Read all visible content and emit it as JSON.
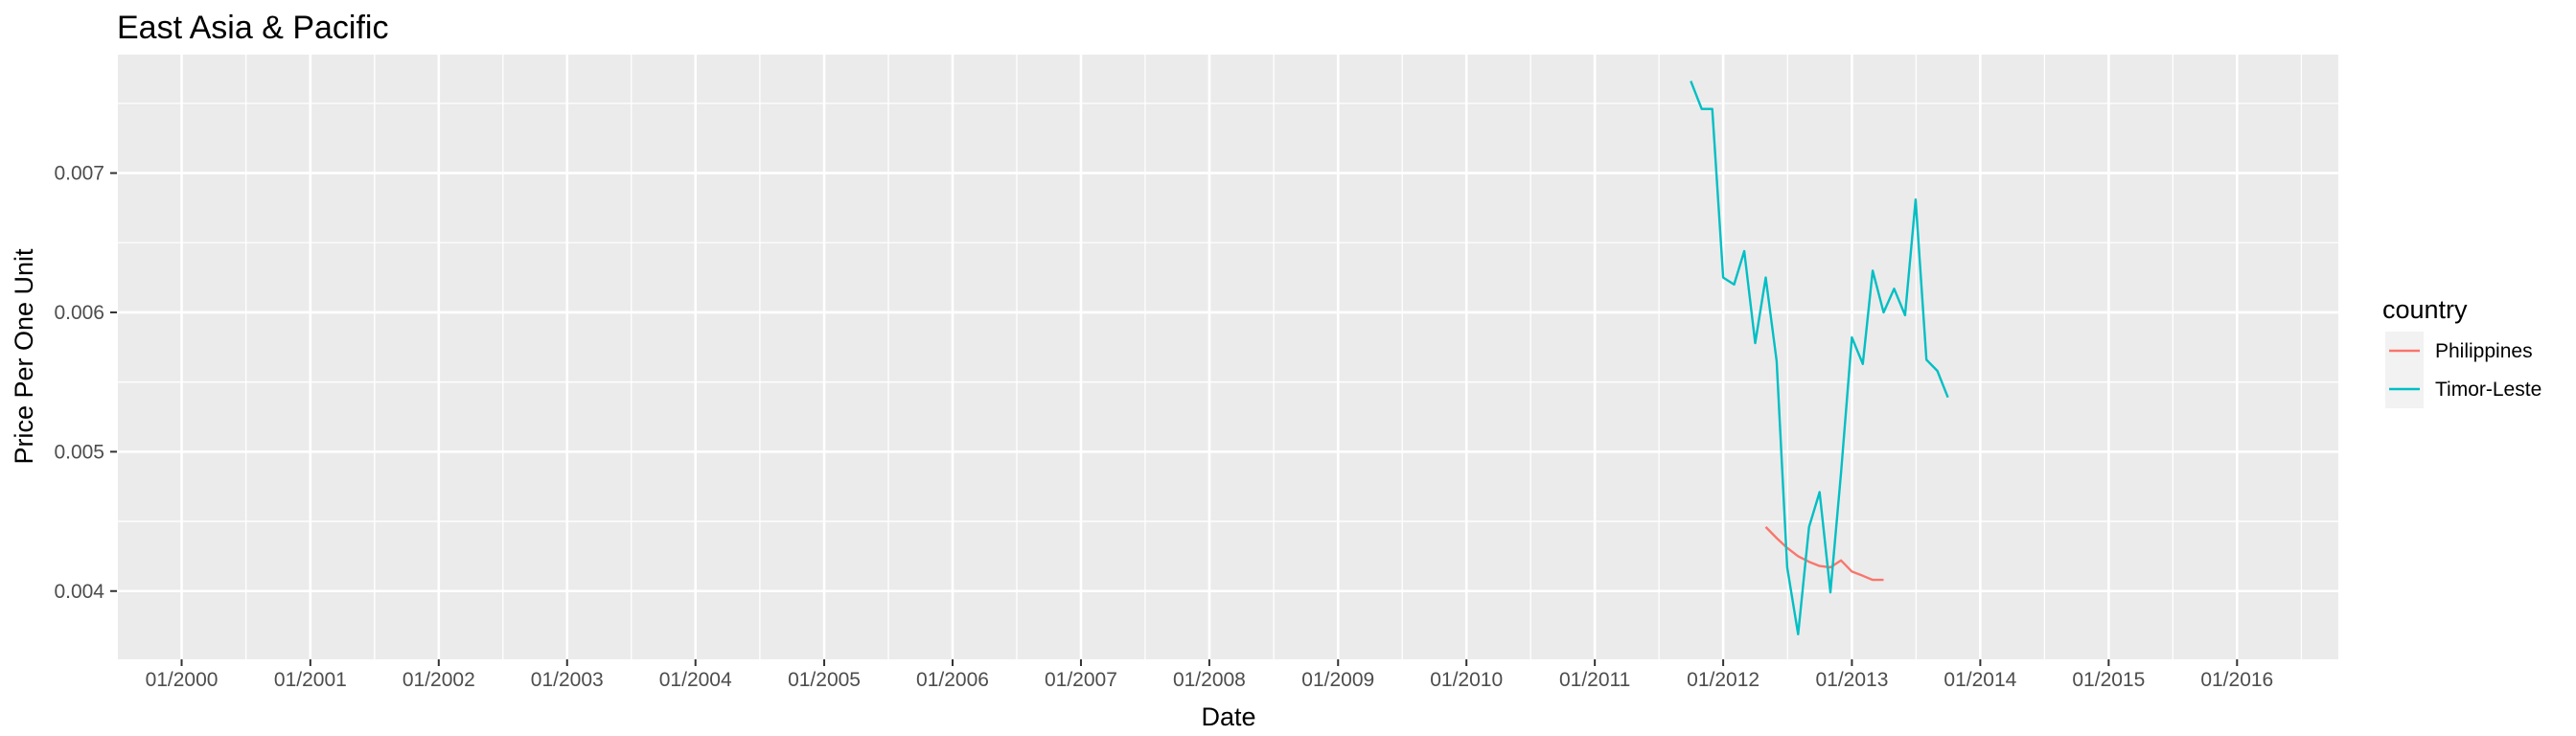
{
  "chart_data": {
    "type": "line",
    "title": "East Asia & Pacific",
    "xlabel": "Date",
    "ylabel": "Price Per One Unit",
    "xlim": [
      "1999-07-01",
      "2016-10-15"
    ],
    "ylim": [
      0.00351,
      0.00785
    ],
    "x_ticks": [
      "2000-01-01",
      "2001-01-01",
      "2002-01-01",
      "2003-01-01",
      "2004-01-01",
      "2005-01-01",
      "2006-01-01",
      "2007-01-01",
      "2008-01-01",
      "2009-01-01",
      "2010-01-01",
      "2011-01-01",
      "2012-01-01",
      "2013-01-01",
      "2014-01-01",
      "2015-01-01",
      "2016-01-01"
    ],
    "x_tick_labels": [
      "01/2000",
      "01/2001",
      "01/2002",
      "01/2003",
      "01/2004",
      "01/2005",
      "01/2006",
      "01/2007",
      "01/2008",
      "01/2009",
      "01/2010",
      "01/2011",
      "01/2012",
      "01/2013",
      "01/2014",
      "01/2015",
      "01/2016"
    ],
    "y_ticks": [
      0.004,
      0.005,
      0.006,
      0.007
    ],
    "y_tick_labels": [
      "0.004",
      "0.005",
      "0.006",
      "0.007"
    ],
    "grid": true,
    "legend": {
      "title": "country",
      "position": "right"
    },
    "series": [
      {
        "name": "Philippines",
        "color": "#F8766D",
        "x": [
          "2012-05-01",
          "2012-06-01",
          "2012-07-01",
          "2012-08-01",
          "2012-09-01",
          "2012-10-01",
          "2012-11-01",
          "2012-12-01",
          "2013-01-01",
          "2013-02-01",
          "2013-03-01",
          "2013-04-01"
        ],
        "y": [
          0.00446,
          0.00438,
          0.00431,
          0.00425,
          0.00421,
          0.00418,
          0.00417,
          0.00422,
          0.00414,
          0.00411,
          0.00408,
          0.00408
        ]
      },
      {
        "name": "Timor-Leste",
        "color": "#00BFC4",
        "x": [
          "2011-10-01",
          "2011-11-01",
          "2011-12-01",
          "2012-01-01",
          "2012-02-01",
          "2012-03-01",
          "2012-04-01",
          "2012-05-01",
          "2012-06-01",
          "2012-07-01",
          "2012-08-01",
          "2012-09-01",
          "2012-10-01",
          "2012-11-01",
          "2012-12-01",
          "2013-01-01",
          "2013-02-01",
          "2013-03-01",
          "2013-04-01",
          "2013-05-01",
          "2013-06-01",
          "2013-07-01",
          "2013-08-01",
          "2013-09-01",
          "2013-10-01"
        ],
        "y": [
          0.00766,
          0.00746,
          0.00746,
          0.00625,
          0.0062,
          0.00644,
          0.00578,
          0.00625,
          0.00565,
          0.00417,
          0.00369,
          0.00446,
          0.00471,
          0.00399,
          0.00485,
          0.00582,
          0.00563,
          0.0063,
          0.006,
          0.00617,
          0.00598,
          0.00681,
          0.00566,
          0.00558,
          0.00539
        ]
      }
    ]
  }
}
